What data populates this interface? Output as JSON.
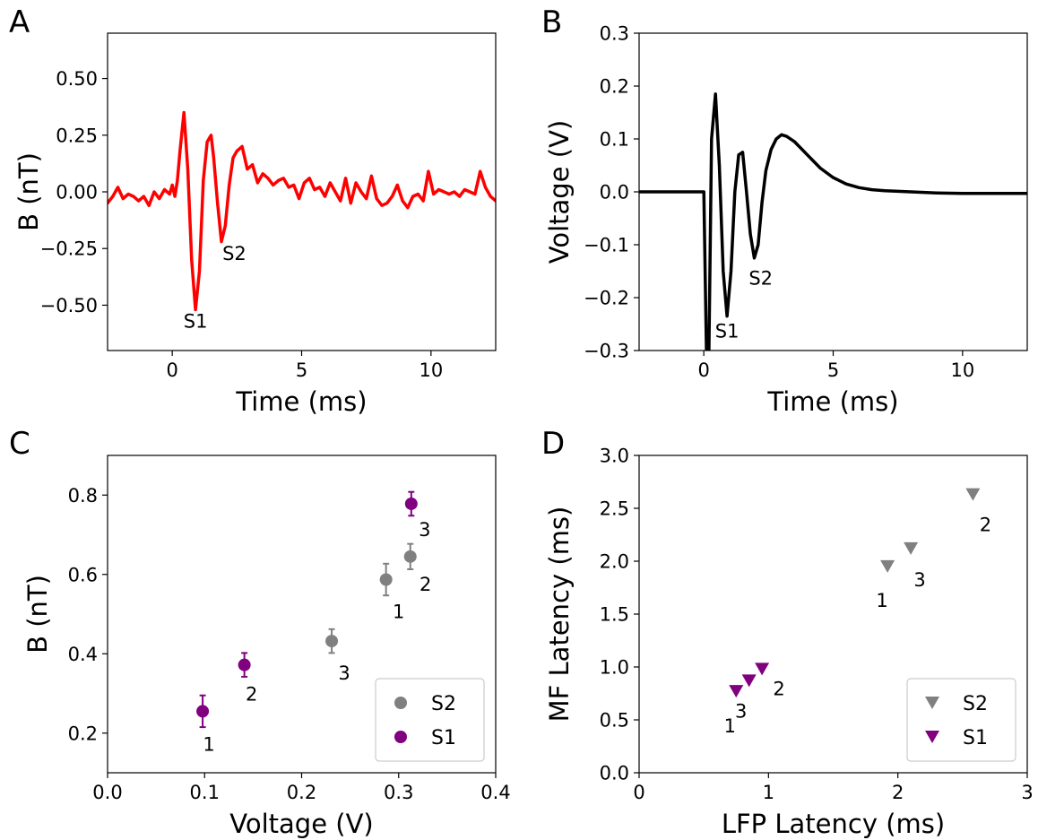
{
  "colors": {
    "red": "#ff0000",
    "black": "#000000",
    "gray": "#808080",
    "purple": "#800080"
  },
  "chart_data": [
    {
      "panel": "A",
      "type": "line",
      "xlabel": "Time (ms)",
      "ylabel": "B (nT)",
      "xlim": [
        -2.5,
        12.5
      ],
      "ylim": [
        -0.7,
        0.7
      ],
      "xticks": [
        "0",
        "5",
        "10"
      ],
      "yticks": [
        "−0.50",
        "−0.25",
        "0.00",
        "0.25",
        "0.50"
      ],
      "series": [
        {
          "color": "#ff0000",
          "x": [
            -2.5,
            -2.3,
            -2.1,
            -1.9,
            -1.7,
            -1.5,
            -1.3,
            -1.1,
            -0.9,
            -0.7,
            -0.5,
            -0.3,
            -0.1,
            0.0,
            0.1,
            0.2,
            0.3,
            0.45,
            0.6,
            0.75,
            0.9,
            1.05,
            1.2,
            1.35,
            1.5,
            1.6,
            1.75,
            1.9,
            2.05,
            2.2,
            2.35,
            2.5,
            2.7,
            2.9,
            3.1,
            3.3,
            3.5,
            3.7,
            3.9,
            4.1,
            4.3,
            4.5,
            4.7,
            4.9,
            5.1,
            5.3,
            5.5,
            5.7,
            5.9,
            6.1,
            6.3,
            6.5,
            6.7,
            6.9,
            7.1,
            7.3,
            7.5,
            7.7,
            7.9,
            8.1,
            8.3,
            8.5,
            8.7,
            8.9,
            9.1,
            9.3,
            9.5,
            9.7,
            9.9,
            10.1,
            10.3,
            10.5,
            10.7,
            10.9,
            11.1,
            11.3,
            11.5,
            11.7,
            11.9,
            12.1,
            12.3,
            12.5
          ],
          "y": [
            -0.05,
            -0.02,
            0.02,
            -0.03,
            -0.01,
            -0.02,
            -0.04,
            -0.02,
            -0.06,
            0.0,
            -0.03,
            0.01,
            -0.01,
            0.03,
            -0.02,
            0.05,
            0.18,
            0.35,
            0.1,
            -0.3,
            -0.52,
            -0.35,
            0.05,
            0.22,
            0.25,
            0.15,
            -0.05,
            -0.22,
            -0.15,
            0.03,
            0.15,
            0.18,
            0.2,
            0.1,
            0.12,
            0.04,
            0.08,
            0.06,
            0.03,
            0.05,
            0.06,
            0.02,
            0.03,
            -0.03,
            0.04,
            0.06,
            0.01,
            0.02,
            -0.02,
            0.04,
            0.0,
            -0.04,
            0.06,
            -0.05,
            0.04,
            0.0,
            -0.03,
            0.07,
            -0.03,
            -0.06,
            -0.05,
            -0.02,
            0.03,
            -0.04,
            -0.07,
            -0.02,
            -0.01,
            -0.04,
            0.09,
            -0.01,
            0.01,
            0.0,
            -0.01,
            0.0,
            -0.02,
            0.01,
            0.0,
            -0.01,
            0.09,
            0.02,
            -0.02,
            -0.04
          ]
        }
      ],
      "annotations": [
        {
          "text": "S1",
          "x": 0.9,
          "y": -0.6
        },
        {
          "text": "S2",
          "x": 2.4,
          "y": -0.3
        }
      ]
    },
    {
      "panel": "B",
      "type": "line",
      "xlabel": "Time (ms)",
      "ylabel": "Voltage (V)",
      "xlim": [
        -2.5,
        12.5
      ],
      "ylim": [
        -0.3,
        0.3
      ],
      "xticks": [
        "0",
        "5",
        "10"
      ],
      "yticks": [
        "−0.3",
        "−0.2",
        "−0.1",
        "0.0",
        "0.1",
        "0.2",
        "0.3"
      ],
      "series": [
        {
          "color": "#000000",
          "x": [
            -2.5,
            -0.1,
            0.0,
            0.1,
            0.2,
            0.3,
            0.45,
            0.6,
            0.75,
            0.9,
            1.05,
            1.2,
            1.35,
            1.5,
            1.65,
            1.8,
            1.95,
            2.1,
            2.25,
            2.4,
            2.6,
            2.8,
            3.0,
            3.2,
            3.5,
            4.0,
            4.5,
            5.0,
            5.5,
            6.0,
            6.5,
            7.0,
            8.0,
            9.0,
            10.0,
            12.5
          ],
          "y": [
            0.0,
            0.0,
            0.0,
            -0.3,
            -0.3,
            0.1,
            0.185,
            0.05,
            -0.15,
            -0.235,
            -0.15,
            0.0,
            0.07,
            0.075,
            0.0,
            -0.08,
            -0.125,
            -0.1,
            -0.02,
            0.04,
            0.08,
            0.1,
            0.108,
            0.105,
            0.095,
            0.07,
            0.045,
            0.027,
            0.015,
            0.008,
            0.004,
            0.002,
            0.0,
            -0.002,
            -0.003,
            -0.003
          ]
        }
      ],
      "annotations": [
        {
          "text": "S1",
          "x": 0.9,
          "y": -0.275
        },
        {
          "text": "S2",
          "x": 2.2,
          "y": -0.175
        }
      ]
    },
    {
      "panel": "C",
      "type": "scatter",
      "xlabel": "Voltage (V)",
      "ylabel": "B (nT)",
      "xlim": [
        0.0,
        0.4
      ],
      "ylim": [
        0.1,
        0.9
      ],
      "xticks": [
        "0.0",
        "0.1",
        "0.2",
        "0.3",
        "0.4"
      ],
      "yticks": [
        "0.2",
        "0.4",
        "0.6",
        "0.8"
      ],
      "legend_position": "bottom-right",
      "series": [
        {
          "name": "S2",
          "color": "#808080",
          "points": [
            {
              "label": "1",
              "x": 0.287,
              "y": 0.587,
              "err": 0.04
            },
            {
              "label": "2",
              "x": 0.312,
              "y": 0.645,
              "err": 0.032
            },
            {
              "label": "3",
              "x": 0.231,
              "y": 0.432,
              "err": 0.03
            }
          ]
        },
        {
          "name": "S1",
          "color": "#800080",
          "points": [
            {
              "label": "1",
              "x": 0.098,
              "y": 0.255,
              "err": 0.04
            },
            {
              "label": "2",
              "x": 0.141,
              "y": 0.372,
              "err": 0.03
            },
            {
              "label": "3",
              "x": 0.313,
              "y": 0.778,
              "err": 0.03
            }
          ]
        }
      ]
    },
    {
      "panel": "D",
      "type": "scatter",
      "xlabel": "LFP Latency (ms)",
      "ylabel": "MF Latency (ms)",
      "xlim": [
        0.0,
        3.0
      ],
      "ylim": [
        0.0,
        3.0
      ],
      "xticks": [
        "0",
        "1",
        "2",
        "3"
      ],
      "yticks": [
        "0.0",
        "0.5",
        "1.0",
        "1.5",
        "2.0",
        "2.5",
        "3.0"
      ],
      "legend_position": "bottom-right",
      "series": [
        {
          "name": "S2",
          "color": "#808080",
          "points": [
            {
              "label": "1",
              "x": 1.92,
              "y": 1.95
            },
            {
              "label": "2",
              "x": 2.58,
              "y": 2.63
            },
            {
              "label": "3",
              "x": 2.1,
              "y": 2.12
            }
          ]
        },
        {
          "name": "S1",
          "color": "#800080",
          "points": [
            {
              "label": "1",
              "x": 0.75,
              "y": 0.77
            },
            {
              "label": "2",
              "x": 0.95,
              "y": 0.98
            },
            {
              "label": "3",
              "x": 0.85,
              "y": 0.87
            }
          ]
        }
      ]
    }
  ]
}
